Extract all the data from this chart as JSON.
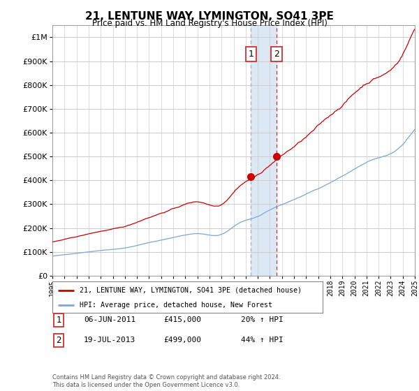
{
  "title": "21, LENTUNE WAY, LYMINGTON, SO41 3PE",
  "subtitle": "Price paid vs. HM Land Registry's House Price Index (HPI)",
  "legend_line1": "21, LENTUNE WAY, LYMINGTON, SO41 3PE (detached house)",
  "legend_line2": "HPI: Average price, detached house, New Forest",
  "transaction1_date": "06-JUN-2011",
  "transaction1_price": "£415,000",
  "transaction1_hpi": "20% ↑ HPI",
  "transaction2_date": "19-JUL-2013",
  "transaction2_price": "£499,000",
  "transaction2_hpi": "44% ↑ HPI",
  "footer": "Contains HM Land Registry data © Crown copyright and database right 2024.\nThis data is licensed under the Open Government Licence v3.0.",
  "line1_color": "#cc0000",
  "line2_color": "#7aa8d2",
  "marker_color": "#cc0000",
  "shaded_color": "#dce9f5",
  "grid_color": "#cccccc",
  "background_color": "#ffffff",
  "ylim_min": 0,
  "ylim_max": 1050000,
  "x_start_year": 1995,
  "x_end_year": 2025,
  "transaction1_year": 2011.44,
  "transaction2_year": 2013.55,
  "transaction1_value": 415000,
  "transaction2_value": 499000
}
